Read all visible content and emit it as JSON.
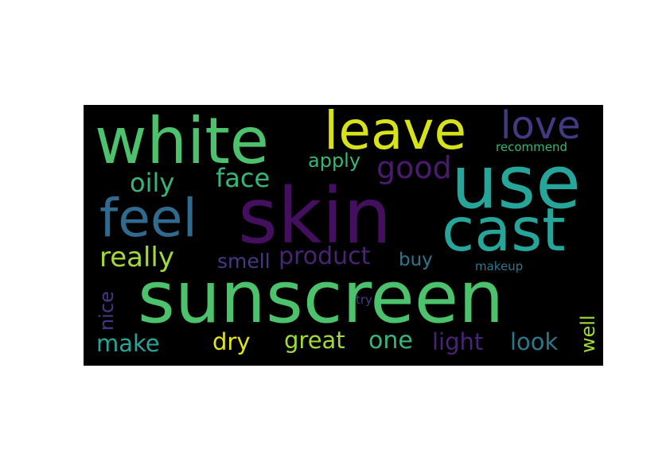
{
  "word_cloud": {
    "words": [
      {
        "text": "skin",
        "color": "#440f5f"
      },
      {
        "text": "sunscreen",
        "color": "#4cc26c"
      },
      {
        "text": "use",
        "color": "#26a69a"
      },
      {
        "text": "white",
        "color": "#4cc26c"
      },
      {
        "text": "cast",
        "color": "#26a69a"
      },
      {
        "text": "leave",
        "color": "#d7e219"
      },
      {
        "text": "feel",
        "color": "#2f6b8e"
      },
      {
        "text": "love",
        "color": "#443a83"
      },
      {
        "text": "good",
        "color": "#4a1a6e"
      },
      {
        "text": "oily",
        "color": "#35b779"
      },
      {
        "text": "face",
        "color": "#35b779"
      },
      {
        "text": "really",
        "color": "#a2da37"
      },
      {
        "text": "product",
        "color": "#482475"
      },
      {
        "text": "apply",
        "color": "#35b779"
      },
      {
        "text": "smell",
        "color": "#443a83"
      },
      {
        "text": "buy",
        "color": "#2a788e"
      },
      {
        "text": "one",
        "color": "#35b779"
      },
      {
        "text": "great",
        "color": "#a2da37"
      },
      {
        "text": "dry",
        "color": "#e3e418"
      },
      {
        "text": "make",
        "color": "#26a69a"
      },
      {
        "text": "light",
        "color": "#482475"
      },
      {
        "text": "look",
        "color": "#2a788e"
      },
      {
        "text": "nice",
        "color": "#443a83"
      },
      {
        "text": "well",
        "color": "#a2da37"
      },
      {
        "text": "recommend",
        "color": "#35b779"
      },
      {
        "text": "makeup",
        "color": "#2a788e"
      },
      {
        "text": "try",
        "color": "#443a83"
      }
    ]
  }
}
